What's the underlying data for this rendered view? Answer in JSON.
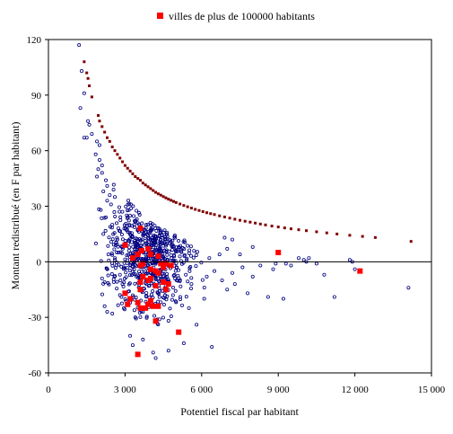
{
  "chart_data": {
    "type": "scatter",
    "title": "",
    "xlabel": "Potentiel fiscal par habitant",
    "ylabel": "Montant redistribué (en F  par habitant)",
    "xlim": [
      0,
      15000
    ],
    "ylim": [
      -60,
      120
    ],
    "x_ticks": [
      0,
      3000,
      6000,
      9000,
      12000,
      15000
    ],
    "x_tick_labels": [
      "0",
      "3 000",
      "6 000",
      "9 000",
      "12 000",
      "15 000"
    ],
    "y_ticks": [
      -60,
      -30,
      0,
      30,
      60,
      90,
      120
    ],
    "y_tick_labels": [
      "-60",
      "-30",
      "0",
      "30",
      "60",
      "90",
      "120"
    ],
    "grid": true,
    "legend": {
      "position": "top-center",
      "entries": [
        "villes de plus de 100000 habitants"
      ]
    },
    "colors": {
      "background": "#ffffff",
      "grid": "#ffffff",
      "border": "#000000",
      "communes": "#000080",
      "curve": "#800000",
      "large_cities": "#ff0000"
    },
    "series": [
      {
        "name": "",
        "kind": "curve-squares",
        "color": "#800000",
        "points": [
          [
            1400,
            108
          ],
          [
            1500,
            102
          ],
          [
            1550,
            99
          ],
          [
            1600,
            95
          ],
          [
            1700,
            89
          ],
          [
            1950,
            79
          ],
          [
            2000,
            76
          ],
          [
            2100,
            73
          ],
          [
            2200,
            70
          ],
          [
            2300,
            67
          ],
          [
            2400,
            65
          ],
          [
            2500,
            62
          ],
          [
            2600,
            60
          ],
          [
            2700,
            58
          ],
          [
            2800,
            56
          ],
          [
            2900,
            54
          ],
          [
            3000,
            52
          ],
          [
            3100,
            50.5
          ],
          [
            3200,
            49
          ],
          [
            3300,
            47.5
          ],
          [
            3400,
            46
          ],
          [
            3500,
            45
          ],
          [
            3600,
            44
          ],
          [
            3700,
            42.5
          ],
          [
            3800,
            41.5
          ],
          [
            3900,
            40.5
          ],
          [
            4000,
            39.5
          ],
          [
            4100,
            38.5
          ],
          [
            4200,
            37.5
          ],
          [
            4300,
            36.7
          ],
          [
            4400,
            36
          ],
          [
            4500,
            35.2
          ],
          [
            4600,
            34.5
          ],
          [
            4700,
            33.8
          ],
          [
            4800,
            33.2
          ],
          [
            4900,
            32.6
          ],
          [
            5000,
            32
          ],
          [
            5150,
            31.2
          ],
          [
            5300,
            30.4
          ],
          [
            5450,
            29.7
          ],
          [
            5600,
            29
          ],
          [
            5750,
            28.3
          ],
          [
            5900,
            27.7
          ],
          [
            6050,
            27.1
          ],
          [
            6200,
            26.5
          ],
          [
            6350,
            26
          ],
          [
            6500,
            25.5
          ],
          [
            6700,
            24.8
          ],
          [
            6900,
            24.2
          ],
          [
            7100,
            23.6
          ],
          [
            7300,
            23
          ],
          [
            7500,
            22.4
          ],
          [
            7700,
            21.9
          ],
          [
            7900,
            21.4
          ],
          [
            8100,
            20.9
          ],
          [
            8300,
            20.4
          ],
          [
            8500,
            19.9
          ],
          [
            8750,
            19.3
          ],
          [
            9000,
            18.8
          ],
          [
            9250,
            18.3
          ],
          [
            9500,
            17.8
          ],
          [
            9800,
            17.3
          ],
          [
            10100,
            16.8
          ],
          [
            10500,
            16.2
          ],
          [
            10900,
            15.6
          ],
          [
            11300,
            15
          ],
          [
            11800,
            14.3
          ],
          [
            12300,
            13.7
          ],
          [
            12800,
            13.1
          ],
          [
            14200,
            11
          ]
        ]
      },
      {
        "name": "villes de plus de 100000 habitants",
        "kind": "filled-squares",
        "color": "#ff0000",
        "points": [
          [
            3600,
            18
          ],
          [
            3000,
            9
          ],
          [
            3300,
            2
          ],
          [
            3650,
            6
          ],
          [
            3900,
            7
          ],
          [
            3500,
            4
          ],
          [
            4000,
            4
          ],
          [
            4300,
            3
          ],
          [
            3700,
            -1
          ],
          [
            4400,
            -1
          ],
          [
            4600,
            -1
          ],
          [
            4800,
            -2
          ],
          [
            3600,
            -2
          ],
          [
            4000,
            -4
          ],
          [
            4200,
            -5
          ],
          [
            4300,
            -6
          ],
          [
            3700,
            -8
          ],
          [
            4000,
            -9
          ],
          [
            3600,
            -11
          ],
          [
            4500,
            -11
          ],
          [
            4200,
            -13
          ],
          [
            3600,
            -15
          ],
          [
            4600,
            -15
          ],
          [
            3000,
            -17
          ],
          [
            3200,
            -20
          ],
          [
            4000,
            -21
          ],
          [
            3500,
            -22
          ],
          [
            3100,
            -23
          ],
          [
            3900,
            -23
          ],
          [
            4100,
            -24
          ],
          [
            4300,
            -24
          ],
          [
            3600,
            -25
          ],
          [
            3800,
            -25
          ],
          [
            4200,
            -32
          ],
          [
            5100,
            -38
          ],
          [
            3500,
            -50
          ],
          [
            4500,
            -3
          ],
          [
            3900,
            -10
          ],
          [
            4700,
            -12
          ],
          [
            9000,
            5
          ],
          [
            12200,
            -5
          ]
        ]
      },
      {
        "name": "",
        "kind": "open-circles",
        "color": "#000080",
        "generator": {
          "n": 780,
          "seed": 7,
          "x_center": 4000,
          "x_spread": 1100,
          "y_center": 5,
          "y_spread": 22
        },
        "points": [
          [
            1200,
            117
          ],
          [
            1300,
            103
          ],
          [
            1400,
            91
          ],
          [
            1250,
            83
          ],
          [
            1550,
            76
          ],
          [
            1600,
            74
          ],
          [
            1700,
            69
          ],
          [
            1500,
            67
          ],
          [
            1400,
            67
          ],
          [
            1900,
            65
          ],
          [
            2000,
            63
          ],
          [
            1850,
            58
          ],
          [
            2000,
            55
          ],
          [
            2100,
            52
          ],
          [
            1950,
            50
          ],
          [
            2100,
            48
          ],
          [
            1900,
            46
          ],
          [
            2250,
            44
          ],
          [
            2300,
            41
          ],
          [
            2150,
            38
          ],
          [
            2400,
            36
          ],
          [
            2300,
            33
          ],
          [
            2450,
            31
          ],
          [
            2550,
            39
          ],
          [
            2600,
            35
          ],
          [
            2050,
            28
          ],
          [
            2250,
            24
          ],
          [
            2500,
            20
          ],
          [
            2150,
            15
          ],
          [
            2700,
            12
          ],
          [
            2900,
            8
          ],
          [
            2750,
            5
          ],
          [
            2600,
            1
          ],
          [
            2950,
            -3
          ],
          [
            2800,
            -7
          ],
          [
            2900,
            -12
          ],
          [
            2100,
            -9
          ],
          [
            2200,
            -11
          ],
          [
            2800,
            -18
          ],
          [
            2950,
            -25
          ],
          [
            2500,
            -28
          ],
          [
            2200,
            -24
          ],
          [
            2300,
            -27
          ],
          [
            3400,
            -30
          ],
          [
            3200,
            -40
          ],
          [
            3700,
            -42
          ],
          [
            3300,
            -45
          ],
          [
            4100,
            -49
          ],
          [
            4200,
            -52
          ],
          [
            4700,
            -48
          ],
          [
            5300,
            -44
          ],
          [
            6400,
            -46
          ],
          [
            5800,
            -34
          ],
          [
            6100,
            -20
          ],
          [
            5500,
            -25
          ],
          [
            5600,
            -12
          ],
          [
            6200,
            -8
          ],
          [
            6500,
            -5
          ],
          [
            6800,
            -10
          ],
          [
            7000,
            -15
          ],
          [
            7200,
            -6
          ],
          [
            7300,
            -12
          ],
          [
            7800,
            -17
          ],
          [
            7600,
            -3
          ],
          [
            8000,
            -8
          ],
          [
            8300,
            -2
          ],
          [
            8600,
            -19
          ],
          [
            9200,
            -20
          ],
          [
            8900,
            -1
          ],
          [
            9300,
            -1
          ],
          [
            9800,
            2
          ],
          [
            10000,
            1
          ],
          [
            10100,
            0
          ],
          [
            10200,
            2
          ],
          [
            10500,
            -1
          ],
          [
            10800,
            -7
          ],
          [
            11200,
            -19
          ],
          [
            11800,
            1
          ],
          [
            11900,
            0
          ],
          [
            12000,
            -4
          ],
          [
            14100,
            -14
          ],
          [
            6300,
            2
          ],
          [
            6700,
            4
          ],
          [
            7000,
            7
          ],
          [
            7500,
            4
          ],
          [
            8000,
            8
          ],
          [
            8800,
            -4
          ],
          [
            9500,
            -2
          ],
          [
            7200,
            12
          ],
          [
            6900,
            13
          ]
        ]
      }
    ]
  }
}
